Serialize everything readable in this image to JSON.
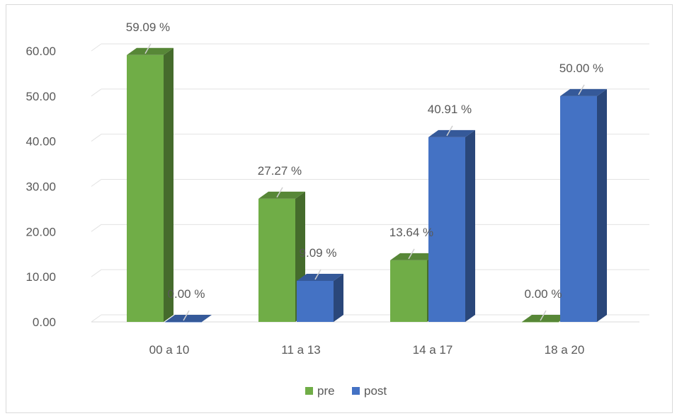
{
  "chart_data": {
    "type": "bar",
    "style": "3d-clustered-column",
    "categories": [
      "00 a 10",
      "11 a 13",
      "14 a 17",
      "18 a 20"
    ],
    "series": [
      {
        "name": "pre",
        "values": [
          59.09,
          27.27,
          13.64,
          0.0
        ],
        "labels": [
          "59.09 %",
          "27.27 %",
          "13.64 %",
          "0.00 %"
        ],
        "color": "#70ad47"
      },
      {
        "name": "post",
        "values": [
          0.0,
          9.09,
          40.91,
          50.0
        ],
        "labels": [
          "0.00 %",
          "9.09 %",
          "40.91 %",
          "50.00 %"
        ],
        "color": "#4472c4"
      }
    ],
    "yticks": [
      "0.00",
      "10.00",
      "20.00",
      "30.00",
      "40.00",
      "50.00",
      "60.00"
    ],
    "ylim": [
      0,
      60
    ],
    "grid": true,
    "legend": "bottom-center",
    "title": "",
    "xlabel": "",
    "ylabel": ""
  }
}
